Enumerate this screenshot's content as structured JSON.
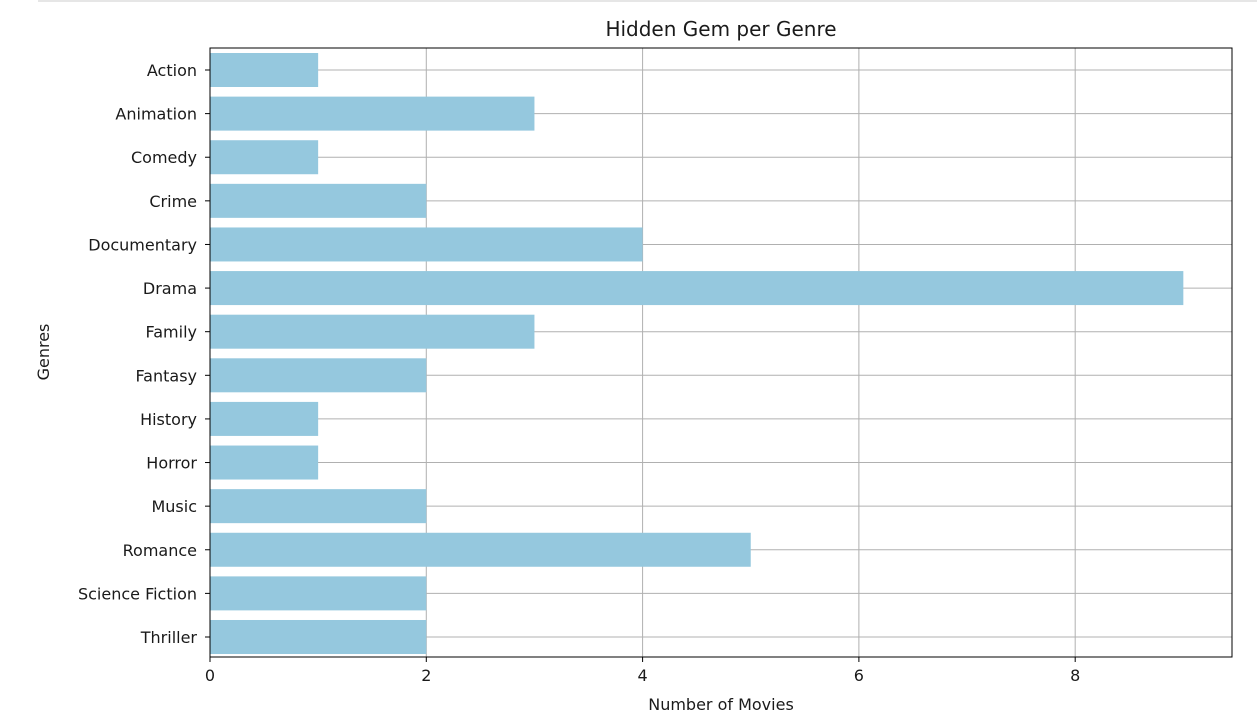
{
  "chart_data": {
    "type": "bar",
    "orientation": "horizontal",
    "title": "Hidden Gem per Genre",
    "xlabel": "Number of Movies",
    "ylabel": "Genres",
    "categories": [
      "Action",
      "Animation",
      "Comedy",
      "Crime",
      "Documentary",
      "Drama",
      "Family",
      "Fantasy",
      "History",
      "Horror",
      "Music",
      "Romance",
      "Science Fiction",
      "Thriller"
    ],
    "values": [
      1,
      3,
      1,
      2,
      4,
      9,
      3,
      2,
      1,
      1,
      2,
      5,
      2,
      2
    ],
    "xlim": [
      0,
      9.45
    ],
    "xticks": [
      0,
      2,
      4,
      6,
      8
    ],
    "grid": true,
    "bar_color": "#95c8de",
    "grid_color": "#b0b0b0"
  }
}
